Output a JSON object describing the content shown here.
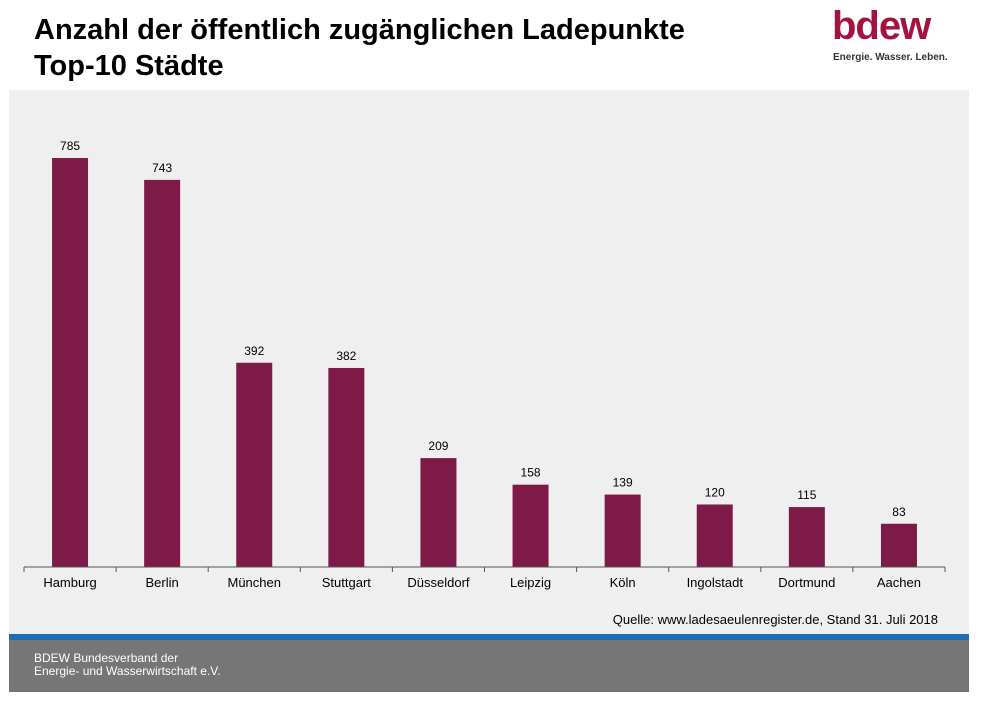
{
  "header": {
    "title_line1": "Anzahl der öffentlich zugänglichen Ladepunkte",
    "title_line2": "Top-10 Städte"
  },
  "logo": {
    "wordmark": "bdew",
    "tagline": "Energie. Wasser. Leben."
  },
  "source": "Quelle: www.ladesaeulenregister.de, Stand 31. Juli 2018",
  "footer": {
    "line1": "BDEW Bundesverband der",
    "line2": "Energie- und Wasserwirtschaft e.V."
  },
  "colors": {
    "bar": "#7d1a47",
    "brand": "#a4123f",
    "footer_band": "#1f6db5"
  },
  "chart_data": {
    "type": "bar",
    "title": "Anzahl der öffentlich zugänglichen Ladepunkte Top-10 Städte",
    "categories": [
      "Hamburg",
      "Berlin",
      "München",
      "Stuttgart",
      "Düsseldorf",
      "Leipzig",
      "Köln",
      "Ingolstadt",
      "Dortmund",
      "Aachen"
    ],
    "values": [
      785,
      743,
      392,
      382,
      209,
      158,
      139,
      120,
      115,
      83
    ],
    "ylim": [
      0,
      785
    ],
    "grid": false,
    "legend": "none",
    "data_labels": true
  }
}
